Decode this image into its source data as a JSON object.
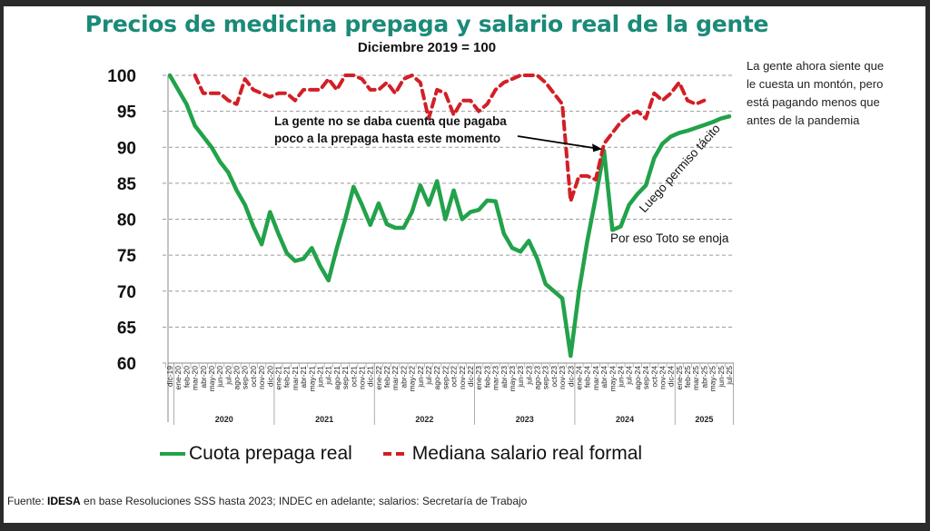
{
  "chart_data": {
    "type": "line",
    "title": "Precios de medicina prepaga y salario real de la gente",
    "subtitle": "Diciembre 2019 = 100",
    "xlabel": "",
    "ylabel": "",
    "ylim": [
      60,
      100
    ],
    "yticks": [
      100,
      95,
      90,
      85,
      80,
      75,
      70,
      65,
      60
    ],
    "grid": true,
    "legend_position": "bottom",
    "x": [
      "dic-19",
      "ene-20",
      "feb-20",
      "mar-20",
      "abr-20",
      "may-20",
      "jun-20",
      "jul-20",
      "ago-20",
      "sep-20",
      "oct-20",
      "nov-20",
      "dic-20",
      "ene-21",
      "feb-21",
      "mar-21",
      "abr-21",
      "may-21",
      "jun-21",
      "jul-21",
      "ago-21",
      "sep-21",
      "oct-21",
      "nov-21",
      "dic-21",
      "ene-22",
      "feb-22",
      "mar-22",
      "abr-22",
      "may-22",
      "jun-22",
      "jul-22",
      "ago-22",
      "sep-22",
      "oct-22",
      "nov-22",
      "dic-22",
      "ene-23",
      "feb-23",
      "mar-23",
      "abr-23",
      "may-23",
      "jun-23",
      "jul-23",
      "ago-23",
      "sep-23",
      "oct-23",
      "nov-23",
      "dic-23",
      "ene-24",
      "feb-24",
      "mar-24",
      "abr-24",
      "may-24",
      "jun-24",
      "jul-24",
      "ago-24",
      "sep-24",
      "oct-24",
      "nov-24",
      "dic-24",
      "ene-25",
      "feb-25",
      "mar-25",
      "abr-25",
      "may-25",
      "jun-25",
      "jul-25"
    ],
    "year_groups": [
      {
        "label": "2020",
        "start": 1,
        "end": 12
      },
      {
        "label": "2021",
        "start": 13,
        "end": 24
      },
      {
        "label": "2022",
        "start": 25,
        "end": 36
      },
      {
        "label": "2023",
        "start": 37,
        "end": 48
      },
      {
        "label": "2024",
        "start": 49,
        "end": 60
      },
      {
        "label": "2025",
        "start": 61,
        "end": 67
      }
    ],
    "series": [
      {
        "name": "Cuota prepaga real",
        "color": "#22a24a",
        "style": "solid",
        "values": [
          100,
          98,
          96,
          93,
          91.5,
          90,
          88,
          86.5,
          84,
          82,
          79,
          76.5,
          81,
          78,
          75.3,
          74.2,
          74.5,
          76,
          73.5,
          71.5,
          76,
          80,
          84.5,
          82,
          79.2,
          82.2,
          79.3,
          78.8,
          78.8,
          81,
          84.7,
          82,
          85.3,
          80,
          84,
          80,
          81,
          81.3,
          82.6,
          82.5,
          78,
          76,
          75.5,
          77,
          74.5,
          71,
          70,
          69,
          61,
          70,
          77,
          83,
          89.5,
          78.5,
          79,
          82,
          83.5,
          84.7,
          88.5,
          90.5,
          91.5,
          92,
          92.3,
          92.7,
          93.1,
          93.5,
          94,
          94.3
        ]
      },
      {
        "name": "Mediana salario real formal",
        "color": "#d21f26",
        "style": "dashed",
        "values": [
          100,
          null,
          null,
          100,
          97.5,
          97.5,
          97.5,
          96.5,
          96,
          99.5,
          98,
          97.5,
          97,
          97.5,
          97.5,
          96.5,
          98,
          98,
          98,
          99.5,
          98,
          100,
          100,
          99.5,
          98,
          98,
          99,
          97.5,
          99.5,
          100,
          99,
          94,
          98,
          97.5,
          94.5,
          96.5,
          96.5,
          95,
          96,
          98,
          99,
          99.5,
          100,
          100,
          100,
          99,
          97.5,
          96,
          82.5,
          86,
          86,
          85.5,
          90.5,
          92,
          93.5,
          94.5,
          95,
          94,
          97.5,
          96.5,
          97.5,
          99,
          96.5,
          96,
          96.5,
          null,
          null,
          null
        ]
      }
    ],
    "annotations": [
      {
        "id": "no-se-daba-cuenta",
        "text_line1": "La gente no se daba cuenta que pagaba",
        "text_line2": "poco a la prepaga hasta este momento",
        "points_to": "abr-24"
      },
      {
        "id": "toto",
        "text": "Por eso Toto se enoja"
      },
      {
        "id": "permiso",
        "text": "Luego permiso tácito"
      }
    ]
  },
  "side_note": {
    "lines": [
      "La gente ahora siente que",
      "le cuesta un montón, pero",
      "está pagando menos que",
      "antes de la pandemia"
    ]
  },
  "source": {
    "prefix": "Fuente: ",
    "org": "IDESA",
    "rest": " en base Resoluciones SSS hasta 2023; INDEC en adelante; salarios: Secretaría de Trabajo"
  }
}
